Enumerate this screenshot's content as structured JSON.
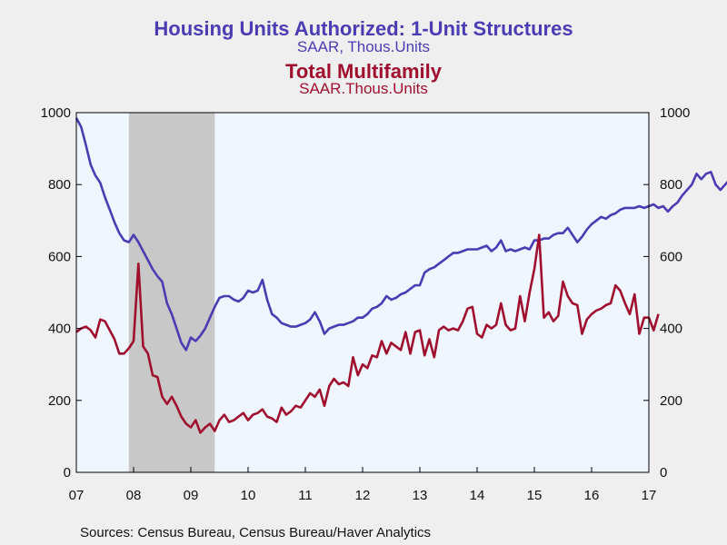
{
  "titles": {
    "series1_title": "Housing Units Authorized: 1-Unit Structures",
    "series1_sub": "SAAR, Thous.Units",
    "series2_title": "Total Multifamily",
    "series2_sub": "SAAR.Thous.Units"
  },
  "source": "Sources:  Census Bureau, Census Bureau/Haver Analytics",
  "colors": {
    "series1": "#4b3cb4",
    "series2": "#a0102e",
    "plot_bg": "#f0f6ff",
    "recession": "#c8c8c8"
  },
  "chart_data": {
    "type": "line",
    "x_start": "2007-01",
    "frequency": "monthly",
    "xlim": [
      "2007-01",
      "2017-01"
    ],
    "x_tick_labels": [
      "07",
      "08",
      "09",
      "10",
      "11",
      "12",
      "13",
      "14",
      "15",
      "16",
      "17"
    ],
    "ylim": [
      0,
      1000
    ],
    "y_ticks": [
      0,
      200,
      400,
      600,
      800,
      1000
    ],
    "grid": false,
    "recession_shading": [
      [
        "2007-12",
        "2009-06"
      ]
    ],
    "series": [
      {
        "color": "#4b3cb4",
        "values": [
          985,
          960,
          910,
          855,
          825,
          805,
          765,
          730,
          695,
          665,
          645,
          640,
          660,
          640,
          615,
          590,
          565,
          545,
          530,
          470,
          440,
          400,
          360,
          340,
          375,
          365,
          380,
          400,
          430,
          460,
          485,
          490,
          490,
          480,
          475,
          485,
          505,
          500,
          505,
          535,
          480,
          440,
          430,
          415,
          410,
          405,
          405,
          410,
          415,
          425,
          445,
          420,
          385,
          400,
          405,
          410,
          410,
          415,
          420,
          430,
          430,
          440,
          455,
          460,
          470,
          490,
          480,
          485,
          495,
          500,
          510,
          520,
          520,
          555,
          565,
          570,
          580,
          590,
          600,
          610,
          610,
          615,
          620,
          620,
          620,
          625,
          630,
          615,
          625,
          645,
          615,
          620,
          615,
          620,
          625,
          620,
          645,
          645,
          650,
          650,
          660,
          665,
          665,
          680,
          660,
          640,
          655,
          675,
          690,
          700,
          710,
          705,
          715,
          720,
          730,
          735,
          735,
          735,
          740,
          735,
          740,
          745,
          735,
          740,
          725,
          740,
          750,
          770,
          785,
          800,
          830,
          815,
          830,
          835,
          800,
          785,
          800,
          815
        ]
      },
      {
        "color": "#a0102e",
        "values": [
          390,
          400,
          405,
          395,
          375,
          425,
          420,
          395,
          370,
          330,
          330,
          345,
          365,
          580,
          350,
          330,
          270,
          265,
          210,
          190,
          210,
          185,
          155,
          135,
          125,
          145,
          110,
          125,
          135,
          115,
          145,
          160,
          140,
          145,
          155,
          165,
          145,
          160,
          165,
          175,
          155,
          150,
          140,
          180,
          160,
          170,
          185,
          180,
          200,
          220,
          210,
          230,
          185,
          240,
          260,
          245,
          250,
          240,
          320,
          270,
          300,
          290,
          325,
          320,
          365,
          330,
          360,
          350,
          340,
          390,
          330,
          390,
          395,
          325,
          370,
          320,
          395,
          405,
          395,
          400,
          395,
          420,
          455,
          460,
          385,
          375,
          410,
          400,
          410,
          470,
          410,
          395,
          400,
          490,
          420,
          500,
          565,
          660,
          430,
          445,
          420,
          435,
          530,
          490,
          470,
          465,
          385,
          425,
          440,
          450,
          455,
          465,
          470,
          520,
          505,
          470,
          440,
          495,
          385,
          430,
          430,
          395,
          440
        ]
      }
    ]
  }
}
